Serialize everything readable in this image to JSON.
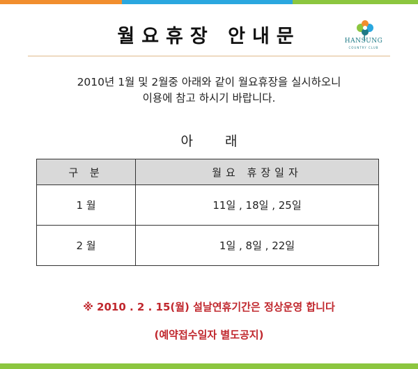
{
  "colors": {
    "stripe": [
      "#f18e2e",
      "#2aa7df",
      "#2aa7df",
      "#8cc63f"
    ],
    "bottom_stripe": "#8cc63f",
    "notice_red": "#c0272d",
    "header_gray": "#d9d9d9"
  },
  "title": "월요휴장 안내문",
  "logo": {
    "name": "HANSUNG",
    "sub": "COUNTRY CLUB",
    "icon": "flower-logo-icon"
  },
  "intro": {
    "line1": "2010년 1월 및 2월중 아래와 같이 월요휴장을 실시하오니",
    "line2": "이용에 참고 하시기 바랍니다."
  },
  "subheading": "아 래",
  "table": {
    "headers": [
      "구 분",
      "월요 휴장일자"
    ],
    "rows": [
      {
        "month": "1 월",
        "dates": "11일 , 18일 , 25일"
      },
      {
        "month": "2 월",
        "dates": "1일 , 8일 , 22일"
      }
    ]
  },
  "notice": {
    "main": "※ 2010 . 2 . 15(월) 설날연휴기간은 정상운영 합니다",
    "sub": "(예약접수일자 별도공지)"
  }
}
